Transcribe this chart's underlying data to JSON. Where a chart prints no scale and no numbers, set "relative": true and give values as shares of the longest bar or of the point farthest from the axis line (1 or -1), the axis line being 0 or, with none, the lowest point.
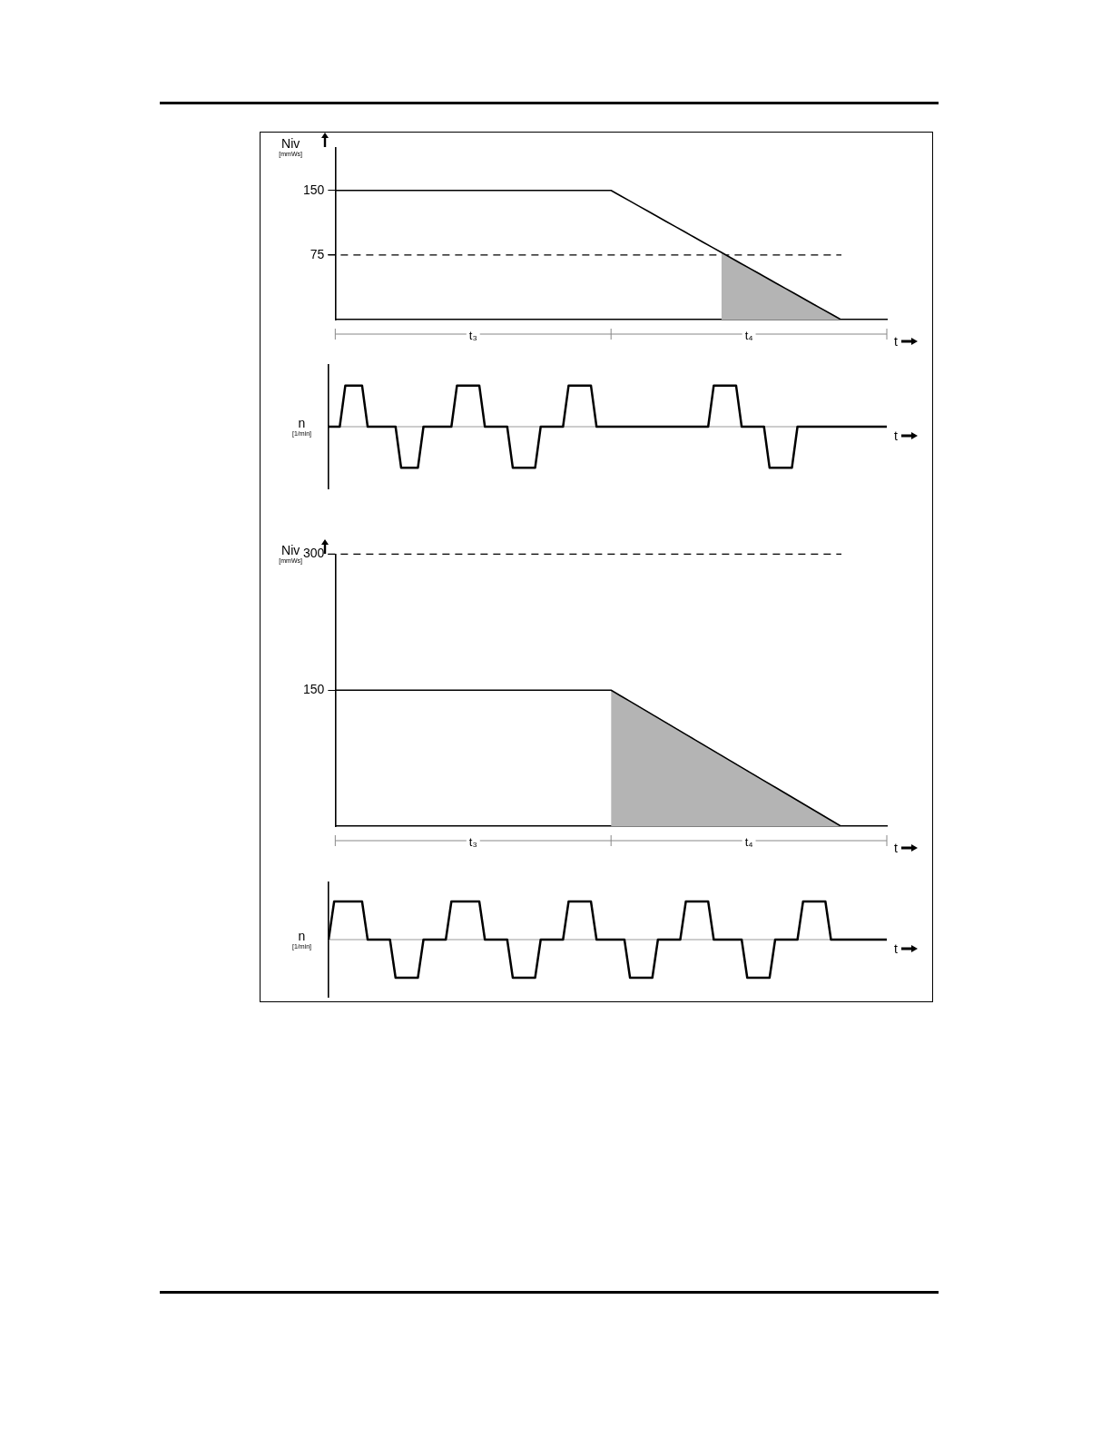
{
  "chart_data": [
    {
      "type": "line",
      "ylabel": "Niv\n[mmWs]",
      "xlabel": "t",
      "annotations": [
        "t₃",
        "t₄"
      ],
      "tick_labels": "y",
      "marker": "none",
      "grid": false,
      "categories": [
        null,
        null,
        null,
        null,
        null,
        null,
        null,
        null,
        null,
        null,
        null,
        null,
        null,
        null,
        null,
        null,
        null,
        null,
        null,
        null,
        null,
        null,
        null,
        null,
        null,
        null,
        null,
        null,
        null,
        null,
        null,
        null,
        null,
        null,
        null,
        null,
        null,
        null,
        null,
        null,
        null,
        null,
        null,
        null,
        null,
        null,
        null,
        null,
        null,
        null,
        null,
        null,
        null,
        null,
        null,
        null,
        null,
        null,
        null,
        null,
        null
      ],
      "ylim": [
        0,
        200
      ],
      "yticks": [
        75,
        150
      ],
      "ref_lines": [
        {
          "axis": "y",
          "value": 75,
          "line_style": "dashed",
          "color": "#000000"
        }
      ],
      "series": [
        {
          "type": "line",
          "color": "#000000",
          "values": [
            150,
            150,
            150,
            150,
            150,
            150,
            150,
            150,
            150,
            150,
            150,
            150,
            150,
            150,
            150,
            150,
            150,
            150,
            150,
            150,
            150,
            150,
            150,
            150,
            150,
            150,
            150,
            150,
            150,
            150,
            150,
            144,
            138,
            132,
            126,
            120,
            114,
            108,
            102,
            96,
            90,
            84,
            78,
            72,
            66,
            60,
            54,
            48,
            42,
            36,
            30,
            24,
            18,
            12,
            6,
            0,
            null,
            null,
            null,
            null,
            null
          ]
        },
        {
          "type": "area",
          "color": "#b4b4b4",
          "line_style": "dashed",
          "values": [
            null,
            null,
            null,
            null,
            null,
            null,
            null,
            null,
            null,
            null,
            null,
            null,
            null,
            null,
            null,
            null,
            null,
            null,
            null,
            null,
            null,
            null,
            null,
            null,
            null,
            null,
            null,
            null,
            null,
            null,
            null,
            null,
            null,
            null,
            null,
            null,
            null,
            null,
            null,
            null,
            null,
            null,
            78,
            72,
            66,
            60,
            54,
            48,
            42,
            36,
            30,
            24,
            18,
            12,
            6,
            0,
            null,
            null,
            null,
            null,
            null
          ]
        }
      ]
    },
    {
      "type": "line",
      "ylabel": "n\n[1/min]",
      "xlabel": "t",
      "tick_labels": false,
      "relative": true,
      "marker": "none",
      "grid": false,
      "color": "#000000",
      "categories": [
        null,
        null,
        null,
        null,
        null,
        null,
        null,
        null,
        null,
        null,
        null,
        null,
        null,
        null,
        null,
        null,
        null,
        null,
        null,
        null,
        null,
        null,
        null,
        null,
        null,
        null,
        null,
        null,
        null,
        null,
        null,
        null,
        null,
        null,
        null,
        null,
        null,
        null,
        null,
        null,
        null,
        null,
        null,
        null,
        null,
        null,
        null,
        null,
        null,
        null,
        null,
        null,
        null,
        null,
        null,
        null,
        null,
        null,
        null,
        null,
        null,
        null,
        null,
        null,
        null,
        null,
        null,
        null,
        null,
        null,
        null,
        null,
        null,
        null,
        null,
        null,
        null,
        null,
        null,
        null,
        null,
        null,
        null,
        null,
        null,
        null,
        null,
        null,
        null,
        null,
        null,
        null,
        null,
        null,
        null,
        null,
        null,
        null,
        null,
        null,
        null
      ],
      "values": [
        0,
        0,
        0,
        1,
        1,
        1,
        1,
        0,
        0,
        0,
        0,
        0,
        0,
        -1,
        -1,
        -1,
        -1,
        0,
        0,
        0,
        0,
        0,
        0,
        1,
        1,
        1,
        1,
        1,
        0,
        0,
        0,
        0,
        0,
        -1,
        -1,
        -1,
        -1,
        -1,
        0,
        0,
        0,
        0,
        0,
        1,
        1,
        1,
        1,
        1,
        0,
        0,
        0,
        0,
        0,
        0,
        0,
        0,
        0,
        0,
        0,
        0,
        0,
        0,
        0,
        0,
        0,
        0,
        0,
        0,
        0,
        1,
        1,
        1,
        1,
        1,
        0,
        0,
        0,
        0,
        0,
        -1,
        -1,
        -1,
        -1,
        -1,
        0,
        0,
        0,
        0,
        0,
        0,
        0,
        0,
        0,
        0,
        0,
        0,
        0,
        0,
        0,
        0,
        0
      ]
    },
    {
      "type": "line",
      "ylabel": "Niv\n[mmWs]",
      "xlabel": "t",
      "annotations": [
        "t₃",
        "t₄"
      ],
      "tick_labels": "y",
      "marker": "none",
      "grid": false,
      "categories": [
        null,
        null,
        null,
        null,
        null,
        null,
        null,
        null,
        null,
        null,
        null,
        null,
        null,
        null,
        null,
        null,
        null,
        null,
        null,
        null,
        null,
        null,
        null,
        null,
        null,
        null,
        null,
        null,
        null,
        null,
        null,
        null,
        null,
        null,
        null,
        null,
        null,
        null,
        null,
        null,
        null,
        null,
        null,
        null,
        null,
        null,
        null,
        null,
        null,
        null,
        null,
        null,
        null,
        null,
        null,
        null,
        null,
        null,
        null,
        null,
        null
      ],
      "ylim": [
        0,
        300
      ],
      "yticks": [
        150,
        300
      ],
      "ref_lines": [
        {
          "axis": "y",
          "value": 300,
          "line_style": "dashed",
          "color": "#000000"
        }
      ],
      "series": [
        {
          "type": "line",
          "color": "#000000",
          "values": [
            150,
            150,
            150,
            150,
            150,
            150,
            150,
            150,
            150,
            150,
            150,
            150,
            150,
            150,
            150,
            150,
            150,
            150,
            150,
            150,
            150,
            150,
            150,
            150,
            150,
            150,
            150,
            150,
            150,
            150,
            150,
            144,
            138,
            132,
            126,
            120,
            114,
            108,
            102,
            96,
            90,
            84,
            78,
            72,
            66,
            60,
            54,
            48,
            42,
            36,
            30,
            24,
            18,
            12,
            6,
            0,
            null,
            null,
            null,
            null,
            null
          ]
        },
        {
          "type": "area",
          "color": "#b4b4b4",
          "line_style": "dashed",
          "values": [
            null,
            null,
            null,
            null,
            null,
            null,
            null,
            null,
            null,
            null,
            null,
            null,
            null,
            null,
            null,
            null,
            null,
            null,
            null,
            null,
            null,
            null,
            null,
            null,
            null,
            null,
            null,
            null,
            null,
            null,
            150,
            144,
            138,
            132,
            126,
            120,
            114,
            108,
            102,
            96,
            90,
            84,
            78,
            72,
            66,
            60,
            54,
            48,
            42,
            36,
            30,
            24,
            18,
            12,
            6,
            0,
            null,
            null,
            null,
            null,
            null
          ]
        }
      ]
    },
    {
      "type": "line",
      "ylabel": "n\n[1/min]",
      "xlabel": "t",
      "tick_labels": false,
      "relative": true,
      "marker": "none",
      "grid": false,
      "color": "#000000",
      "categories": [
        null,
        null,
        null,
        null,
        null,
        null,
        null,
        null,
        null,
        null,
        null,
        null,
        null,
        null,
        null,
        null,
        null,
        null,
        null,
        null,
        null,
        null,
        null,
        null,
        null,
        null,
        null,
        null,
        null,
        null,
        null,
        null,
        null,
        null,
        null,
        null,
        null,
        null,
        null,
        null,
        null,
        null,
        null,
        null,
        null,
        null,
        null,
        null,
        null,
        null,
        null,
        null,
        null,
        null,
        null,
        null,
        null,
        null,
        null,
        null,
        null,
        null,
        null,
        null,
        null,
        null,
        null,
        null,
        null,
        null,
        null,
        null,
        null,
        null,
        null,
        null,
        null,
        null,
        null,
        null,
        null,
        null,
        null,
        null,
        null,
        null,
        null,
        null,
        null,
        null,
        null,
        null,
        null,
        null,
        null,
        null,
        null,
        null,
        null,
        null,
        null
      ],
      "values": [
        0,
        1,
        1,
        1,
        1,
        1,
        1,
        0,
        0,
        0,
        0,
        0,
        -1,
        -1,
        -1,
        -1,
        -1,
        0,
        0,
        0,
        0,
        0,
        1,
        1,
        1,
        1,
        1,
        1,
        0,
        0,
        0,
        0,
        0,
        -1,
        -1,
        -1,
        -1,
        -1,
        0,
        0,
        0,
        0,
        0,
        1,
        1,
        1,
        1,
        1,
        0,
        0,
        0,
        0,
        0,
        0,
        -1,
        -1,
        -1,
        -1,
        -1,
        0,
        0,
        0,
        0,
        0,
        1,
        1,
        1,
        1,
        1,
        0,
        0,
        0,
        0,
        0,
        0,
        -1,
        -1,
        -1,
        -1,
        -1,
        0,
        0,
        0,
        0,
        0,
        1,
        1,
        1,
        1,
        1,
        0,
        0,
        0,
        0,
        0,
        0,
        0,
        0,
        0,
        0,
        0
      ]
    }
  ]
}
